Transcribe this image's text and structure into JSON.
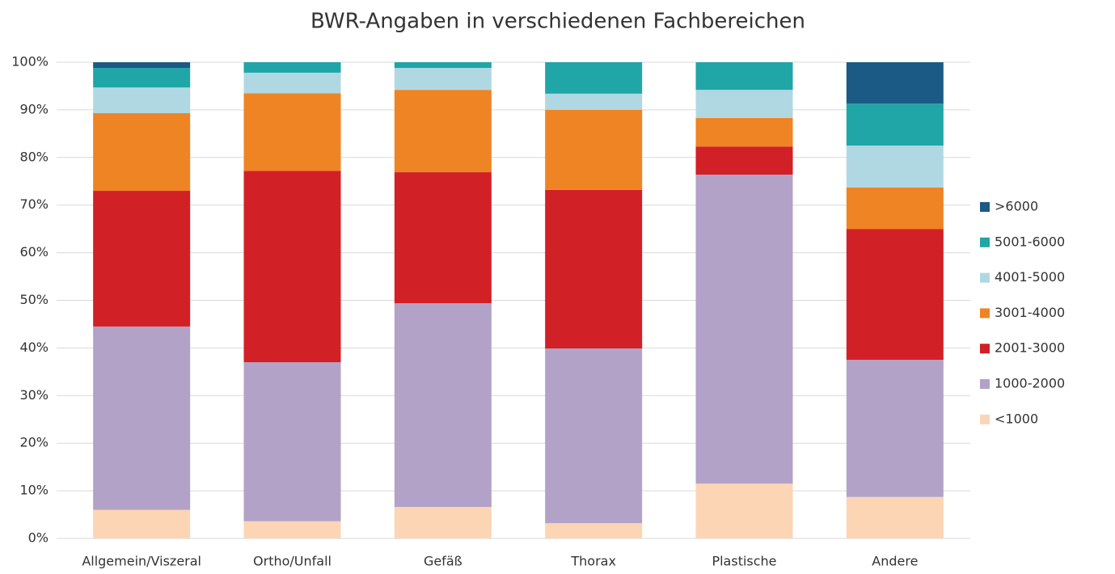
{
  "chart_data": {
    "type": "stacked_bar",
    "title": "BWR-Angaben in verschiedenen Fachbereichen",
    "categories": [
      "Allgemein/Viszeral",
      "Ortho/Unfall",
      "Gefäß",
      "Thorax",
      "Plastische",
      "Andere"
    ],
    "series": [
      {
        "name": "<1000",
        "color": "#fcd5b5",
        "values": [
          6,
          3.6,
          6.6,
          3.2,
          11.5,
          8.7
        ]
      },
      {
        "name": "1000-2000",
        "color": "#b3a2c7",
        "values": [
          38.5,
          33.4,
          42.8,
          36.7,
          64.9,
          28.8
        ]
      },
      {
        "name": "2001-3000",
        "color": "#d22027",
        "values": [
          28.5,
          40.2,
          27.5,
          33.3,
          5.9,
          27.5
        ]
      },
      {
        "name": "3001-4000",
        "color": "#ef8424",
        "values": [
          16.3,
          16.3,
          17.3,
          16.8,
          6,
          8.7
        ]
      },
      {
        "name": "4001-5000",
        "color": "#b0d8e3",
        "values": [
          5.4,
          4.3,
          4.6,
          3.4,
          5.9,
          8.8
        ]
      },
      {
        "name": "5001-6000",
        "color": "#20a6a7",
        "values": [
          4.1,
          2.2,
          1.2,
          6.6,
          5.8,
          8.8
        ]
      },
      {
        "name": ">6000",
        "color": "#1b5a85",
        "values": [
          1.2,
          0,
          0,
          0,
          0,
          8.7
        ]
      }
    ],
    "ylim": [
      0,
      100
    ],
    "yticks": [
      {
        "value": 0,
        "label": "0%"
      },
      {
        "value": 10,
        "label": "10%"
      },
      {
        "value": 20,
        "label": "20%"
      },
      {
        "value": 30,
        "label": "30%"
      },
      {
        "value": 40,
        "label": "40%"
      },
      {
        "value": 50,
        "label": "50%"
      },
      {
        "value": 60,
        "label": "60%"
      },
      {
        "value": 70,
        "label": "70%"
      },
      {
        "value": 80,
        "label": "80%"
      },
      {
        "value": 90,
        "label": "90%"
      },
      {
        "value": 100,
        "label": "100%"
      }
    ],
    "grid": true,
    "legend": "right"
  }
}
